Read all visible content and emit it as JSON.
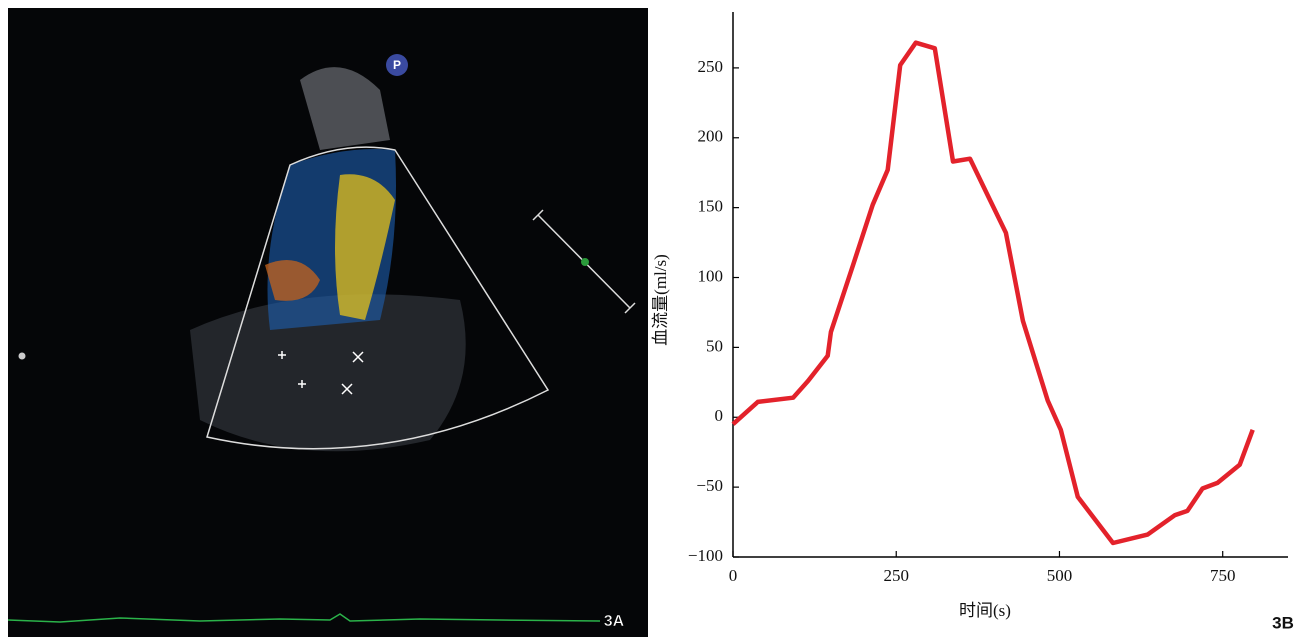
{
  "ultrasound": {
    "marker": "P",
    "label": "3A"
  },
  "chart_label": "3B",
  "chart_data": {
    "type": "line",
    "x_label": "时间(s)",
    "y_label": "血流量(ml/s)",
    "x": [
      0,
      38,
      92,
      115,
      145,
      150,
      184,
      214,
      237,
      256,
      280,
      309,
      337,
      363,
      390,
      418,
      444,
      482,
      502,
      528,
      582,
      635,
      677,
      696,
      719,
      742,
      776,
      796
    ],
    "values": [
      -5,
      11,
      14,
      26,
      44,
      61,
      109,
      152,
      177,
      252,
      268,
      264,
      183,
      185,
      159,
      132,
      69,
      12,
      -9,
      -57,
      -90,
      -84,
      -70,
      -67,
      -51,
      -47,
      -34,
      -9
    ],
    "color": "#e3222b",
    "xlim": [
      0,
      850
    ],
    "ylim": [
      -100,
      290
    ],
    "xticks": [
      0,
      250,
      500,
      750
    ],
    "yticks": [
      {
        "value": -100,
        "label": "−100"
      },
      {
        "value": -50,
        "label": "−50"
      },
      0,
      50,
      100,
      150,
      200,
      250
    ],
    "grid": false
  }
}
